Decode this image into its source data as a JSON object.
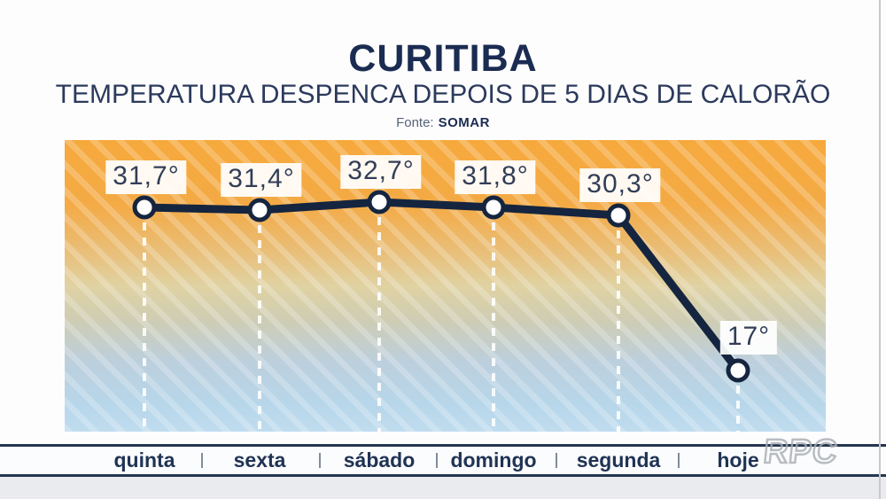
{
  "header": {
    "title": "CURITIBA",
    "subtitle": "TEMPERATURA DESPENCA DEPOIS DE 5 DIAS DE CALORÃO",
    "source_label": "Fonte:",
    "source_value": "SOMAR"
  },
  "watermark": {
    "text": "RPC"
  },
  "chart_data": {
    "type": "line",
    "title": "CURITIBA",
    "subtitle": "TEMPERATURA DESPENCA DEPOIS DE 5 DIAS DE CALORÃO",
    "source": "Fonte: SOMAR",
    "categories": [
      "quinta",
      "sexta",
      "sábado",
      "domingo",
      "segunda",
      "hoje"
    ],
    "series": [
      {
        "name": "temperatura",
        "values": [
          31.7,
          31.4,
          32.7,
          31.8,
          30.3,
          17.0
        ]
      }
    ],
    "value_labels": [
      "31,7°",
      "31,4°",
      "32,7°",
      "31,8°",
      "30,3°",
      "17°"
    ],
    "unit": "°",
    "legend": false,
    "grid": false,
    "marker": "white-circle-navy-ring",
    "guide_lines": "white-dashed-vertical",
    "colors": {
      "line": "#15253F",
      "value_text": "#323E58",
      "day_text": "#1F3354",
      "title_navy": "#1B2C52",
      "gradient_top": "#F6A93C",
      "gradient_bottom": "#C0DCEF"
    }
  }
}
